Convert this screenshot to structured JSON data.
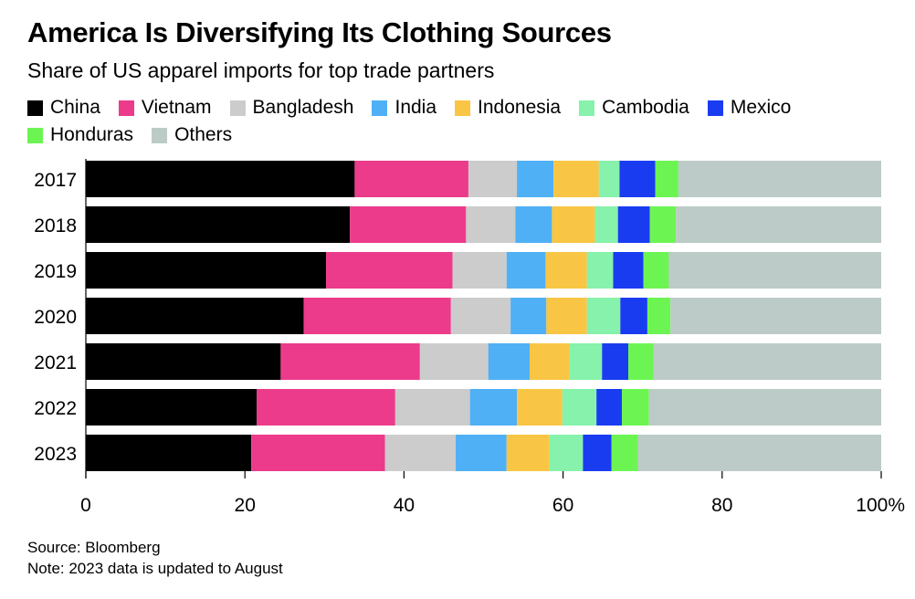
{
  "header": {
    "title": "America Is Diversifying Its Clothing Sources",
    "subtitle": "Share of US apparel imports for top trade partners"
  },
  "footer": {
    "source": "Source: Bloomberg",
    "note": "Note: 2023 data is updated to August"
  },
  "chart_data": {
    "type": "bar",
    "orientation": "horizontal",
    "stacked": true,
    "categories": [
      "2017",
      "2018",
      "2019",
      "2020",
      "2021",
      "2022",
      "2023"
    ],
    "xlim": [
      0,
      100
    ],
    "x_ticks": [
      "0",
      "20",
      "40",
      "60",
      "80",
      "100%"
    ],
    "x_tick_values": [
      0,
      20,
      40,
      60,
      80,
      100
    ],
    "legend_placement": "top",
    "series": [
      {
        "name": "China",
        "color": "#000000",
        "values": [
          33.8,
          33.2,
          30.2,
          27.4,
          24.5,
          21.5,
          20.8
        ]
      },
      {
        "name": "Vietnam",
        "color": "#ec3b8b",
        "values": [
          14.3,
          14.6,
          15.9,
          18.5,
          17.5,
          17.4,
          16.8
        ]
      },
      {
        "name": "Bangladesh",
        "color": "#cccccc",
        "values": [
          6.1,
          6.2,
          6.8,
          7.5,
          8.6,
          9.4,
          8.9
        ]
      },
      {
        "name": "India",
        "color": "#4fb0f5",
        "values": [
          4.6,
          4.6,
          4.9,
          4.5,
          5.2,
          5.9,
          6.4
        ]
      },
      {
        "name": "Indonesia",
        "color": "#f9c544",
        "values": [
          5.7,
          5.4,
          5.2,
          5.1,
          5.0,
          5.7,
          5.4
        ]
      },
      {
        "name": "Cambodia",
        "color": "#86f2ab",
        "values": [
          2.6,
          2.9,
          3.3,
          4.2,
          4.1,
          4.3,
          4.2
        ]
      },
      {
        "name": "Mexico",
        "color": "#1a3cf0",
        "values": [
          4.5,
          4.0,
          3.8,
          3.4,
          3.3,
          3.2,
          3.6
        ]
      },
      {
        "name": "Honduras",
        "color": "#6cf552",
        "values": [
          2.9,
          3.3,
          3.2,
          2.9,
          3.2,
          3.4,
          3.3
        ]
      },
      {
        "name": "Others",
        "color": "#bccbc7",
        "values": [
          25.5,
          25.8,
          26.7,
          26.5,
          28.6,
          29.2,
          30.6
        ]
      }
    ]
  }
}
